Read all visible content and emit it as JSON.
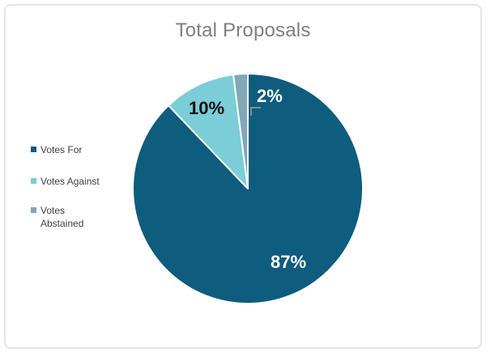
{
  "chart_data": {
    "type": "pie",
    "title": "Total Proposals",
    "categories": [
      "Votes For",
      "Votes Against",
      "Votes Abstained"
    ],
    "values": [
      87,
      10,
      2
    ],
    "data_labels": [
      "87%",
      "10%",
      "2%"
    ],
    "colors": [
      "#0e5c7e",
      "#7bcdd8",
      "#82a8b5"
    ],
    "label_text_colors": [
      "#ffffff",
      "#111111",
      "#ffffff"
    ],
    "title_color": "#7f7f7f",
    "legend_text_color": "#404040",
    "slice_border_color": "#ffffff",
    "leader_line_color": "#9e9e9e",
    "legend_position": "left",
    "start_angle": 0,
    "direction": "clockwise"
  }
}
